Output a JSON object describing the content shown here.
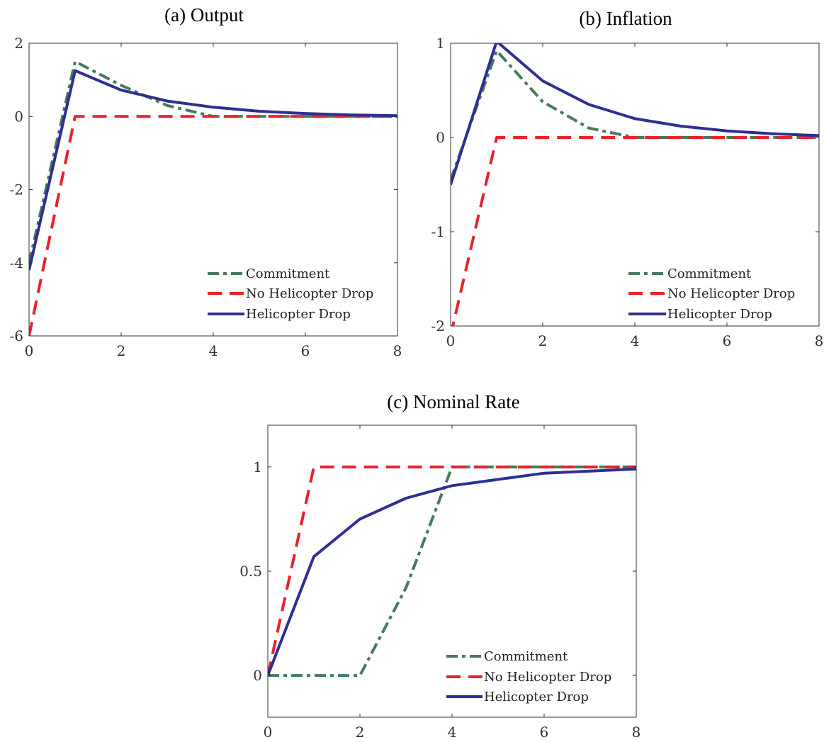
{
  "chart_data": [
    {
      "type": "line",
      "title": "(a) Output",
      "xlabel": "",
      "ylabel": "",
      "xlim": [
        0,
        8
      ],
      "ylim": [
        -6,
        2
      ],
      "xticks": [
        0,
        2,
        4,
        6,
        8
      ],
      "yticks": [
        -6,
        -4,
        -2,
        0,
        2
      ],
      "xtick_labels": [
        "0",
        "2",
        "4",
        "6",
        "8"
      ],
      "ytick_labels": [
        "-6",
        "-4",
        "-2",
        "0",
        "2"
      ],
      "x": [
        0,
        1,
        2,
        3,
        4,
        5,
        6,
        7,
        8
      ],
      "legend_position": "bottom-right",
      "series": [
        {
          "name": "Commitment",
          "values": [
            -4.0,
            1.5,
            0.85,
            0.3,
            0.0,
            0.0,
            0.0,
            0.0,
            0.0
          ]
        },
        {
          "name": "No Helicopter Drop",
          "values": [
            -6.0,
            0.0,
            0.0,
            0.0,
            0.0,
            0.0,
            0.0,
            0.0,
            0.0
          ]
        },
        {
          "name": "Helicopter Drop",
          "values": [
            -4.2,
            1.25,
            0.72,
            0.42,
            0.25,
            0.14,
            0.08,
            0.04,
            0.02
          ]
        }
      ]
    },
    {
      "type": "line",
      "title": "(b) Inflation",
      "xlabel": "",
      "ylabel": "",
      "xlim": [
        0,
        8
      ],
      "ylim": [
        -2,
        1
      ],
      "xticks": [
        0,
        2,
        4,
        6,
        8
      ],
      "yticks": [
        -2,
        -1,
        0,
        1
      ],
      "xtick_labels": [
        "0",
        "2",
        "4",
        "6",
        "8"
      ],
      "ytick_labels": [
        "-2",
        "-1",
        "0",
        "1"
      ],
      "x": [
        0,
        1,
        2,
        3,
        4,
        5,
        6,
        7,
        8
      ],
      "legend_position": "bottom-right",
      "series": [
        {
          "name": "Commitment",
          "values": [
            -0.45,
            0.92,
            0.38,
            0.1,
            0.0,
            0.0,
            0.0,
            0.0,
            0.0
          ]
        },
        {
          "name": "No Helicopter Drop",
          "values": [
            -2.1,
            0.0,
            0.0,
            0.0,
            0.0,
            0.0,
            0.0,
            0.0,
            0.0
          ]
        },
        {
          "name": "Helicopter Drop",
          "values": [
            -0.5,
            1.02,
            0.6,
            0.35,
            0.2,
            0.12,
            0.07,
            0.04,
            0.02
          ]
        }
      ]
    },
    {
      "type": "line",
      "title": "(c) Nominal Rate",
      "xlabel": "",
      "ylabel": "",
      "xlim": [
        0,
        8
      ],
      "ylim": [
        -0.2,
        1.2
      ],
      "xticks": [
        0,
        2,
        4,
        6,
        8
      ],
      "yticks": [
        0,
        0.5,
        1
      ],
      "xtick_labels": [
        "0",
        "2",
        "4",
        "6",
        "8"
      ],
      "ytick_labels": [
        "0",
        "0.5",
        "1"
      ],
      "x": [
        0,
        1,
        2,
        3,
        4,
        5,
        6,
        7,
        8
      ],
      "legend_position": "bottom-right",
      "series": [
        {
          "name": "Commitment",
          "values": [
            0.0,
            0.0,
            0.0,
            0.42,
            1.0,
            1.0,
            1.0,
            1.0,
            1.0
          ]
        },
        {
          "name": "No Helicopter Drop",
          "values": [
            0.0,
            1.0,
            1.0,
            1.0,
            1.0,
            1.0,
            1.0,
            1.0,
            1.0
          ]
        },
        {
          "name": "Helicopter Drop",
          "values": [
            0.0,
            0.57,
            0.75,
            0.85,
            0.91,
            0.94,
            0.97,
            0.98,
            0.99
          ]
        }
      ]
    }
  ],
  "series_styles": [
    {
      "color": "#457a5b",
      "dash": "dashdot"
    },
    {
      "color": "#e8222a",
      "dash": "dashed"
    },
    {
      "color": "#2e2f92",
      "dash": "solid"
    }
  ]
}
